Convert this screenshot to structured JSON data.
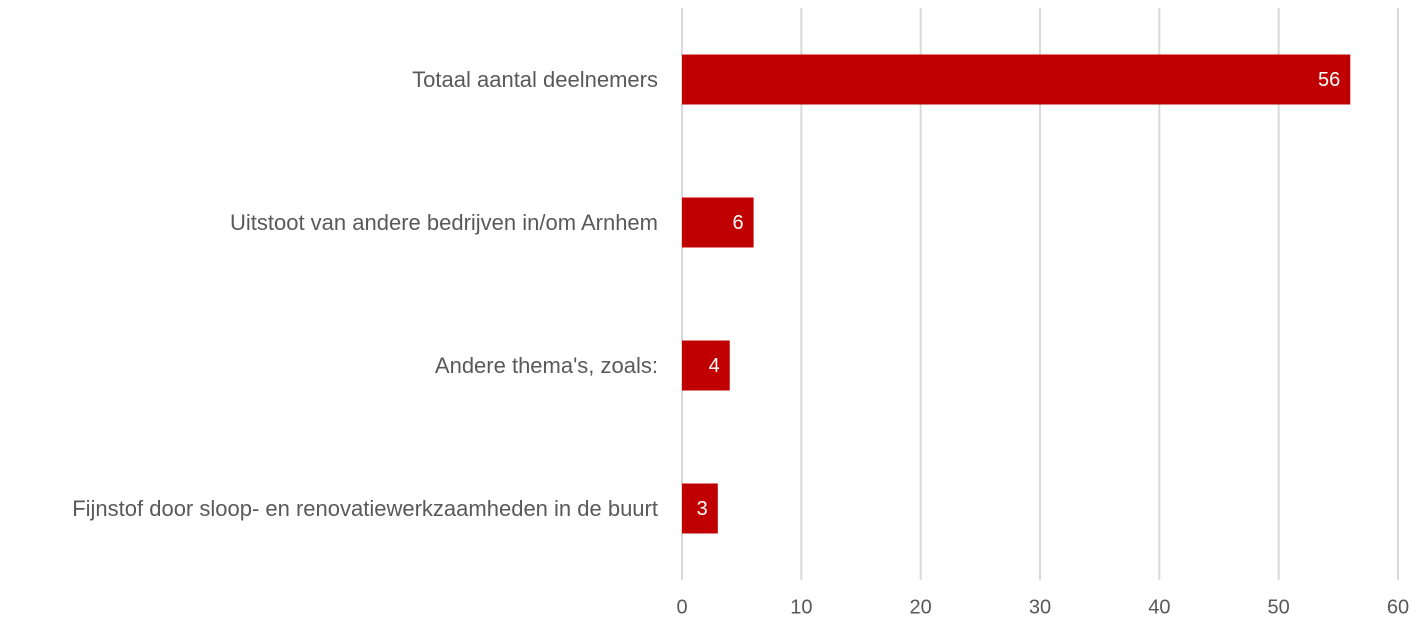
{
  "chart_data": {
    "type": "bar",
    "orientation": "horizontal",
    "categories": [
      "Totaal aantal deelnemers",
      "Uitstoot van andere bedrijven in/om Arnhem",
      "Andere thema's, zoals:",
      "Fijnstof door sloop- en renovatiewerkzaamheden in de buurt"
    ],
    "values": [
      56,
      6,
      4,
      3
    ],
    "color": "#c00000",
    "xlim": [
      0,
      60
    ],
    "xticks": [
      0,
      10,
      20,
      30,
      40,
      50,
      60
    ],
    "grid": true
  }
}
